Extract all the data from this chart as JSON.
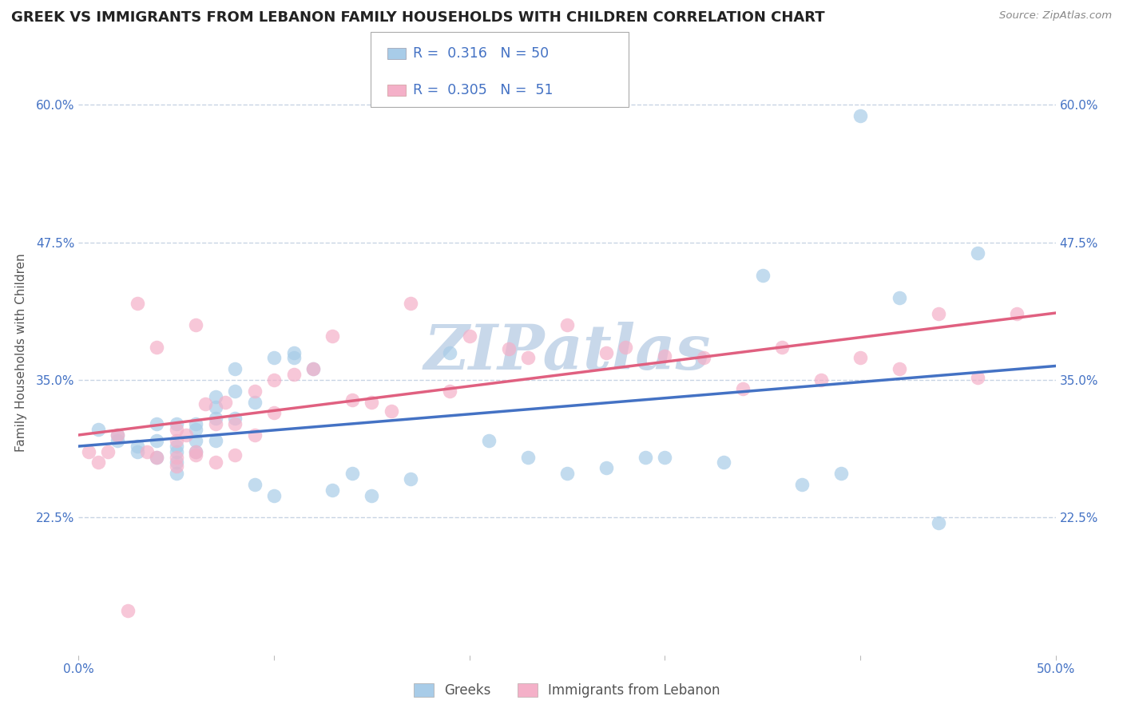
{
  "title": "GREEK VS IMMIGRANTS FROM LEBANON FAMILY HOUSEHOLDS WITH CHILDREN CORRELATION CHART",
  "source": "Source: ZipAtlas.com",
  "ylabel": "Family Households with Children",
  "watermark": "ZIPatlas",
  "xlim": [
    0.0,
    0.5
  ],
  "ylim": [
    0.1,
    0.65
  ],
  "xticks": [
    0.0,
    0.1,
    0.2,
    0.3,
    0.4,
    0.5
  ],
  "xticklabels": [
    "0.0%",
    "",
    "",
    "",
    "",
    "50.0%"
  ],
  "yticks": [
    0.225,
    0.35,
    0.475,
    0.6
  ],
  "yticklabels": [
    "22.5%",
    "35.0%",
    "47.5%",
    "60.0%"
  ],
  "greek_color": "#a8cce8",
  "lebanon_color": "#f4b0c8",
  "greek_line_color": "#4472c4",
  "lebanon_line_color": "#e06080",
  "title_fontsize": 13,
  "axis_label_fontsize": 11,
  "tick_fontsize": 11,
  "watermark_color": "#c8d8ea",
  "background_color": "#ffffff",
  "plot_bg_color": "#ffffff",
  "grid_color": "#c8d4e4",
  "greek_x": [
    0.01,
    0.02,
    0.02,
    0.03,
    0.03,
    0.04,
    0.04,
    0.04,
    0.05,
    0.05,
    0.05,
    0.05,
    0.05,
    0.06,
    0.06,
    0.06,
    0.06,
    0.07,
    0.07,
    0.07,
    0.07,
    0.08,
    0.08,
    0.08,
    0.09,
    0.09,
    0.1,
    0.1,
    0.11,
    0.11,
    0.12,
    0.13,
    0.14,
    0.15,
    0.17,
    0.19,
    0.21,
    0.23,
    0.25,
    0.27,
    0.29,
    0.3,
    0.33,
    0.35,
    0.37,
    0.39,
    0.4,
    0.42,
    0.44,
    0.46
  ],
  "greek_y": [
    0.305,
    0.295,
    0.3,
    0.29,
    0.285,
    0.295,
    0.28,
    0.31,
    0.29,
    0.285,
    0.275,
    0.265,
    0.31,
    0.285,
    0.305,
    0.295,
    0.31,
    0.295,
    0.315,
    0.325,
    0.335,
    0.34,
    0.36,
    0.315,
    0.33,
    0.255,
    0.37,
    0.245,
    0.375,
    0.37,
    0.36,
    0.25,
    0.265,
    0.245,
    0.26,
    0.375,
    0.295,
    0.28,
    0.265,
    0.27,
    0.28,
    0.28,
    0.275,
    0.445,
    0.255,
    0.265,
    0.59,
    0.425,
    0.22,
    0.465
  ],
  "lebanon_x": [
    0.005,
    0.01,
    0.015,
    0.02,
    0.025,
    0.03,
    0.035,
    0.04,
    0.04,
    0.05,
    0.05,
    0.05,
    0.05,
    0.055,
    0.06,
    0.06,
    0.06,
    0.065,
    0.07,
    0.07,
    0.075,
    0.08,
    0.08,
    0.09,
    0.09,
    0.1,
    0.1,
    0.11,
    0.12,
    0.13,
    0.14,
    0.15,
    0.16,
    0.17,
    0.19,
    0.2,
    0.22,
    0.23,
    0.25,
    0.27,
    0.28,
    0.3,
    0.32,
    0.34,
    0.36,
    0.38,
    0.4,
    0.42,
    0.44,
    0.46,
    0.48
  ],
  "lebanon_y": [
    0.285,
    0.275,
    0.285,
    0.3,
    0.14,
    0.42,
    0.285,
    0.28,
    0.38,
    0.295,
    0.28,
    0.272,
    0.305,
    0.3,
    0.285,
    0.4,
    0.282,
    0.328,
    0.31,
    0.275,
    0.33,
    0.31,
    0.282,
    0.34,
    0.3,
    0.35,
    0.32,
    0.355,
    0.36,
    0.39,
    0.332,
    0.33,
    0.322,
    0.42,
    0.34,
    0.39,
    0.378,
    0.37,
    0.4,
    0.375,
    0.38,
    0.372,
    0.37,
    0.342,
    0.38,
    0.35,
    0.37,
    0.36,
    0.41,
    0.352,
    0.41
  ]
}
